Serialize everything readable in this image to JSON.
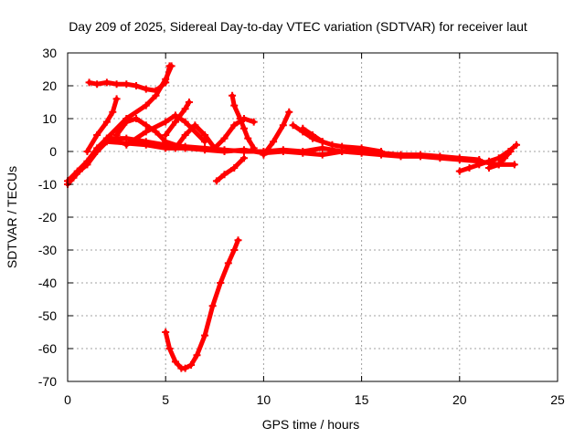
{
  "chart_data": {
    "type": "scatter",
    "title": "Day 209 of 2025, Sidereal Day-to-day VTEC variation (SDTVAR) for receiver laut",
    "xlabel": "GPS time / hours",
    "ylabel": "SDTVAR / TECUs",
    "xlim": [
      0,
      25
    ],
    "ylim": [
      -70,
      30
    ],
    "xticks": [
      0,
      5,
      10,
      15,
      20,
      25
    ],
    "yticks": [
      -70,
      -60,
      -50,
      -40,
      -30,
      -20,
      -10,
      0,
      10,
      20,
      30
    ],
    "grid": true,
    "legend": "none",
    "series_color": "#ff0000",
    "series": [
      {
        "name": "main-band",
        "x": [
          0,
          0.3,
          0.6,
          1.0,
          1.5,
          2.0,
          3.0,
          4.0,
          5.0,
          6.0,
          7.0,
          8.0,
          9.0,
          10.0,
          11.0,
          12.0,
          13.0,
          14.0,
          15.0,
          16.0,
          17.0,
          18.0,
          19.0,
          20.0,
          21.0,
          22.0,
          22.8
        ],
        "y": [
          -10,
          -8,
          -6,
          -4,
          0,
          3,
          2.5,
          2,
          1,
          1,
          0.5,
          0,
          0.5,
          -0.5,
          0,
          -0.5,
          -1,
          0,
          -0.5,
          -1,
          -1.5,
          -1.5,
          -2,
          -2.5,
          -3,
          -4,
          -4
        ]
      },
      {
        "name": "band-2",
        "x": [
          0,
          0.5,
          1.0,
          1.5,
          2.0,
          3.0,
          4.0,
          5.0,
          6.0,
          7.0,
          8.0,
          9.0,
          10.0,
          11.0,
          12.0,
          13.0,
          14.0,
          15.0,
          16.0,
          17.0,
          18.0,
          19.0,
          20.0,
          21.0
        ],
        "y": [
          -9,
          -6,
          -3,
          1,
          4,
          4,
          3,
          2,
          1.5,
          1,
          0.5,
          0,
          0,
          0.5,
          0,
          1,
          0,
          0.5,
          -0.5,
          -1,
          -1,
          -1.5,
          -2,
          -2.5
        ]
      },
      {
        "name": "upper-arc",
        "x": [
          1.1,
          1.5,
          2.0,
          2.5,
          3.0,
          3.5,
          4.0,
          4.5,
          5.0,
          5.2
        ],
        "y": [
          21,
          20.5,
          21,
          20.5,
          20.5,
          20,
          19,
          18.5,
          21,
          26
        ]
      },
      {
        "name": "arc-to-16",
        "x": [
          1.0,
          1.5,
          2.0,
          2.3,
          2.5
        ],
        "y": [
          0,
          5,
          9,
          12,
          16
        ]
      },
      {
        "name": "arc-to-26",
        "x": [
          2.0,
          3.0,
          4.0,
          4.5,
          5.0,
          5.3
        ],
        "y": [
          4,
          10,
          14,
          17,
          22,
          26
        ]
      },
      {
        "name": "arc-10-a",
        "x": [
          2.5,
          3.0,
          3.5,
          4.0,
          4.5,
          5.0,
          6.0
        ],
        "y": [
          5,
          9,
          10,
          8,
          6,
          3,
          1
        ]
      },
      {
        "name": "arc-10-b",
        "x": [
          3.0,
          4.0,
          5.0,
          5.5,
          6.0,
          7.0
        ],
        "y": [
          2,
          6,
          9,
          11,
          9,
          3
        ]
      },
      {
        "name": "arc-15",
        "x": [
          5.0,
          5.5,
          6.0,
          6.2
        ],
        "y": [
          5,
          9,
          13,
          15
        ]
      },
      {
        "name": "arc-8-c",
        "x": [
          5.5,
          6.0,
          6.5,
          7.0,
          7.5
        ],
        "y": [
          1,
          5,
          8,
          5,
          1
        ]
      },
      {
        "name": "arc-17",
        "x": [
          8.4,
          8.5,
          8.8,
          9.0,
          9.2,
          9.5
        ],
        "y": [
          17,
          14,
          10,
          7,
          4,
          1
        ]
      },
      {
        "name": "arc-10-d",
        "x": [
          7.5,
          8.0,
          8.5,
          9.0,
          9.5
        ],
        "y": [
          1,
          4,
          8,
          10,
          9
        ]
      },
      {
        "name": "arc-minus-9",
        "x": [
          7.6,
          8.0,
          8.5,
          9.0
        ],
        "y": [
          -9,
          -7,
          -5,
          -2
        ]
      },
      {
        "name": "arc-12",
        "x": [
          10.0,
          10.5,
          11.0,
          11.3
        ],
        "y": [
          -1,
          3,
          8,
          12
        ]
      },
      {
        "name": "arc-8-e",
        "x": [
          11.5,
          12.0,
          12.5,
          13.0,
          13.5,
          14.0,
          15.0,
          16.0
        ],
        "y": [
          8,
          6,
          4,
          3,
          2,
          1.5,
          1,
          0
        ]
      },
      {
        "name": "arc-7",
        "x": [
          12.0,
          12.5,
          13.0
        ],
        "y": [
          7,
          5,
          3
        ]
      },
      {
        "name": "end-up",
        "x": [
          20.0,
          20.5,
          21.0,
          21.5,
          22.0,
          22.5,
          22.9
        ],
        "y": [
          -6,
          -5,
          -4,
          -3,
          -2,
          0,
          2
        ]
      },
      {
        "name": "end-hook",
        "x": [
          21.5,
          22.0,
          22.3,
          22.6
        ],
        "y": [
          -5,
          -4,
          -2,
          0
        ]
      },
      {
        "name": "deep-dip",
        "x": [
          5.0,
          5.2,
          5.5,
          5.8,
          6.0,
          6.3,
          6.6,
          7.0,
          7.4,
          7.8,
          8.2,
          8.5,
          8.7
        ],
        "y": [
          -55,
          -60,
          -64,
          -66,
          -66,
          -65,
          -62,
          -56,
          -47,
          -40,
          -34,
          -30,
          -27
        ]
      }
    ]
  }
}
